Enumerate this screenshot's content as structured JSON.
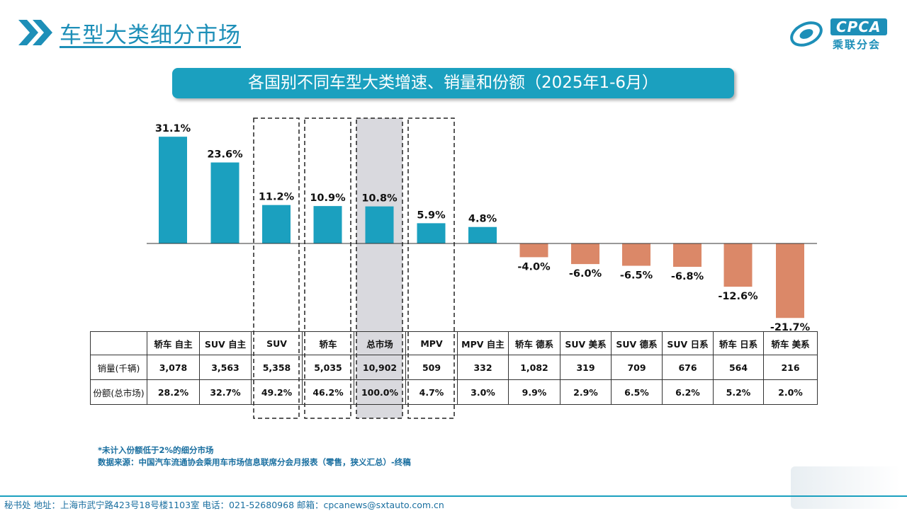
{
  "header": {
    "title": "车型大类细分市场"
  },
  "logo": {
    "text": "CPCA",
    "sub": "乘联分会"
  },
  "chart_data": {
    "type": "bar",
    "title": "各国别不同车型大类增速、销量和份额（2025年1-6月）",
    "categories": [
      "轿车 自主",
      "SUV 自主",
      "SUV",
      "轿车",
      "总市场",
      "MPV",
      "MPV 自主",
      "轿车 德系",
      "SUV 美系",
      "SUV 德系",
      "SUV 日系",
      "轿车 日系",
      "轿车 美系"
    ],
    "values": [
      31.1,
      23.6,
      11.2,
      10.9,
      10.8,
      5.9,
      4.8,
      -4.0,
      -6.0,
      -6.5,
      -6.8,
      -12.6,
      -21.7
    ],
    "value_labels": [
      "31.1%",
      "23.6%",
      "11.2%",
      "10.9%",
      "10.8%",
      "5.9%",
      "4.8%",
      "-4.0%",
      "-6.0%",
      "-6.5%",
      "-6.8%",
      "-12.6%",
      "-21.7%"
    ],
    "colors": {
      "positive": "#1ba0bf",
      "negative": "#db8868"
    },
    "highlighted": [
      "SUV",
      "轿车",
      "总市场",
      "MPV"
    ],
    "shaded": [
      "总市场"
    ],
    "table": {
      "row_labels": [
        "销量(千辆)",
        "份额(总市场)"
      ],
      "sales": [
        "3,078",
        "3,563",
        "5,358",
        "5,035",
        "10,902",
        "509",
        "332",
        "1,082",
        "319",
        "709",
        "676",
        "564",
        "216"
      ],
      "shares": [
        "28.2%",
        "32.7%",
        "49.2%",
        "46.2%",
        "100.0%",
        "4.7%",
        "3.0%",
        "9.9%",
        "2.9%",
        "6.5%",
        "6.2%",
        "5.2%",
        "2.0%"
      ]
    }
  },
  "footnote": {
    "line1": "*未计入份额低于2%的细分市场",
    "line2": "数据来源：中国汽车流通协会乘用车市场信息联席分会月报表（零售，狭义汇总）-终稿"
  },
  "footer": {
    "text": "秘书处   地址：上海市武宁路423号18号楼1103室   电话：021-52680968   邮箱：cpcanews@sxtauto.com.cn"
  }
}
